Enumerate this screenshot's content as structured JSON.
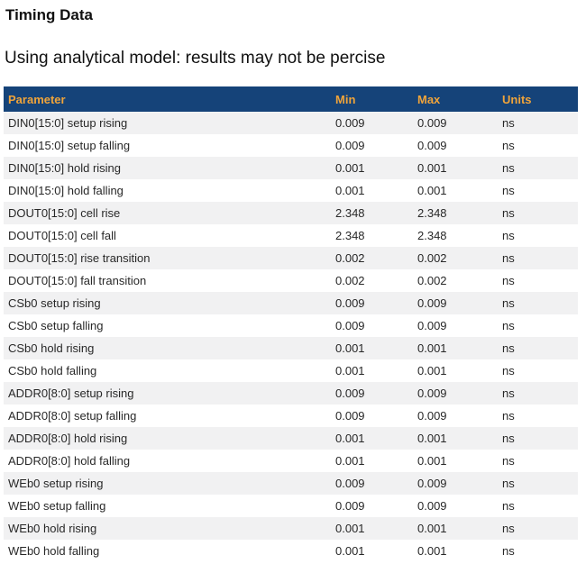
{
  "page": {
    "title": "Timing Data",
    "subtitle": "Using analytical model: results may not be percise"
  },
  "table": {
    "columns": [
      "Parameter",
      "Min",
      "Max",
      "Units"
    ],
    "rows": [
      {
        "parameter": "DIN0[15:0] setup rising",
        "min": "0.009",
        "max": "0.009",
        "units": "ns"
      },
      {
        "parameter": "DIN0[15:0] setup falling",
        "min": "0.009",
        "max": "0.009",
        "units": "ns"
      },
      {
        "parameter": "DIN0[15:0] hold rising",
        "min": "0.001",
        "max": "0.001",
        "units": "ns"
      },
      {
        "parameter": "DIN0[15:0] hold falling",
        "min": "0.001",
        "max": "0.001",
        "units": "ns"
      },
      {
        "parameter": "DOUT0[15:0] cell rise",
        "min": "2.348",
        "max": "2.348",
        "units": "ns"
      },
      {
        "parameter": "DOUT0[15:0] cell fall",
        "min": "2.348",
        "max": "2.348",
        "units": "ns"
      },
      {
        "parameter": "DOUT0[15:0] rise transition",
        "min": "0.002",
        "max": "0.002",
        "units": "ns"
      },
      {
        "parameter": "DOUT0[15:0] fall transition",
        "min": "0.002",
        "max": "0.002",
        "units": "ns"
      },
      {
        "parameter": "CSb0 setup rising",
        "min": "0.009",
        "max": "0.009",
        "units": "ns"
      },
      {
        "parameter": "CSb0 setup falling",
        "min": "0.009",
        "max": "0.009",
        "units": "ns"
      },
      {
        "parameter": "CSb0 hold rising",
        "min": "0.001",
        "max": "0.001",
        "units": "ns"
      },
      {
        "parameter": "CSb0 hold falling",
        "min": "0.001",
        "max": "0.001",
        "units": "ns"
      },
      {
        "parameter": "ADDR0[8:0] setup rising",
        "min": "0.009",
        "max": "0.009",
        "units": "ns"
      },
      {
        "parameter": "ADDR0[8:0] setup falling",
        "min": "0.009",
        "max": "0.009",
        "units": "ns"
      },
      {
        "parameter": "ADDR0[8:0] hold rising",
        "min": "0.001",
        "max": "0.001",
        "units": "ns"
      },
      {
        "parameter": "ADDR0[8:0] hold falling",
        "min": "0.001",
        "max": "0.001",
        "units": "ns"
      },
      {
        "parameter": "WEb0 setup rising",
        "min": "0.009",
        "max": "0.009",
        "units": "ns"
      },
      {
        "parameter": "WEb0 setup falling",
        "min": "0.009",
        "max": "0.009",
        "units": "ns"
      },
      {
        "parameter": "WEb0 hold rising",
        "min": "0.001",
        "max": "0.001",
        "units": "ns"
      },
      {
        "parameter": "WEb0 hold falling",
        "min": "0.001",
        "max": "0.001",
        "units": "ns"
      }
    ]
  },
  "colors": {
    "header_bg": "#154379",
    "header_text": "#f0a43a",
    "alt_row_bg": "#f1f1f2",
    "body_text": "#282828",
    "title_text": "#111111"
  }
}
